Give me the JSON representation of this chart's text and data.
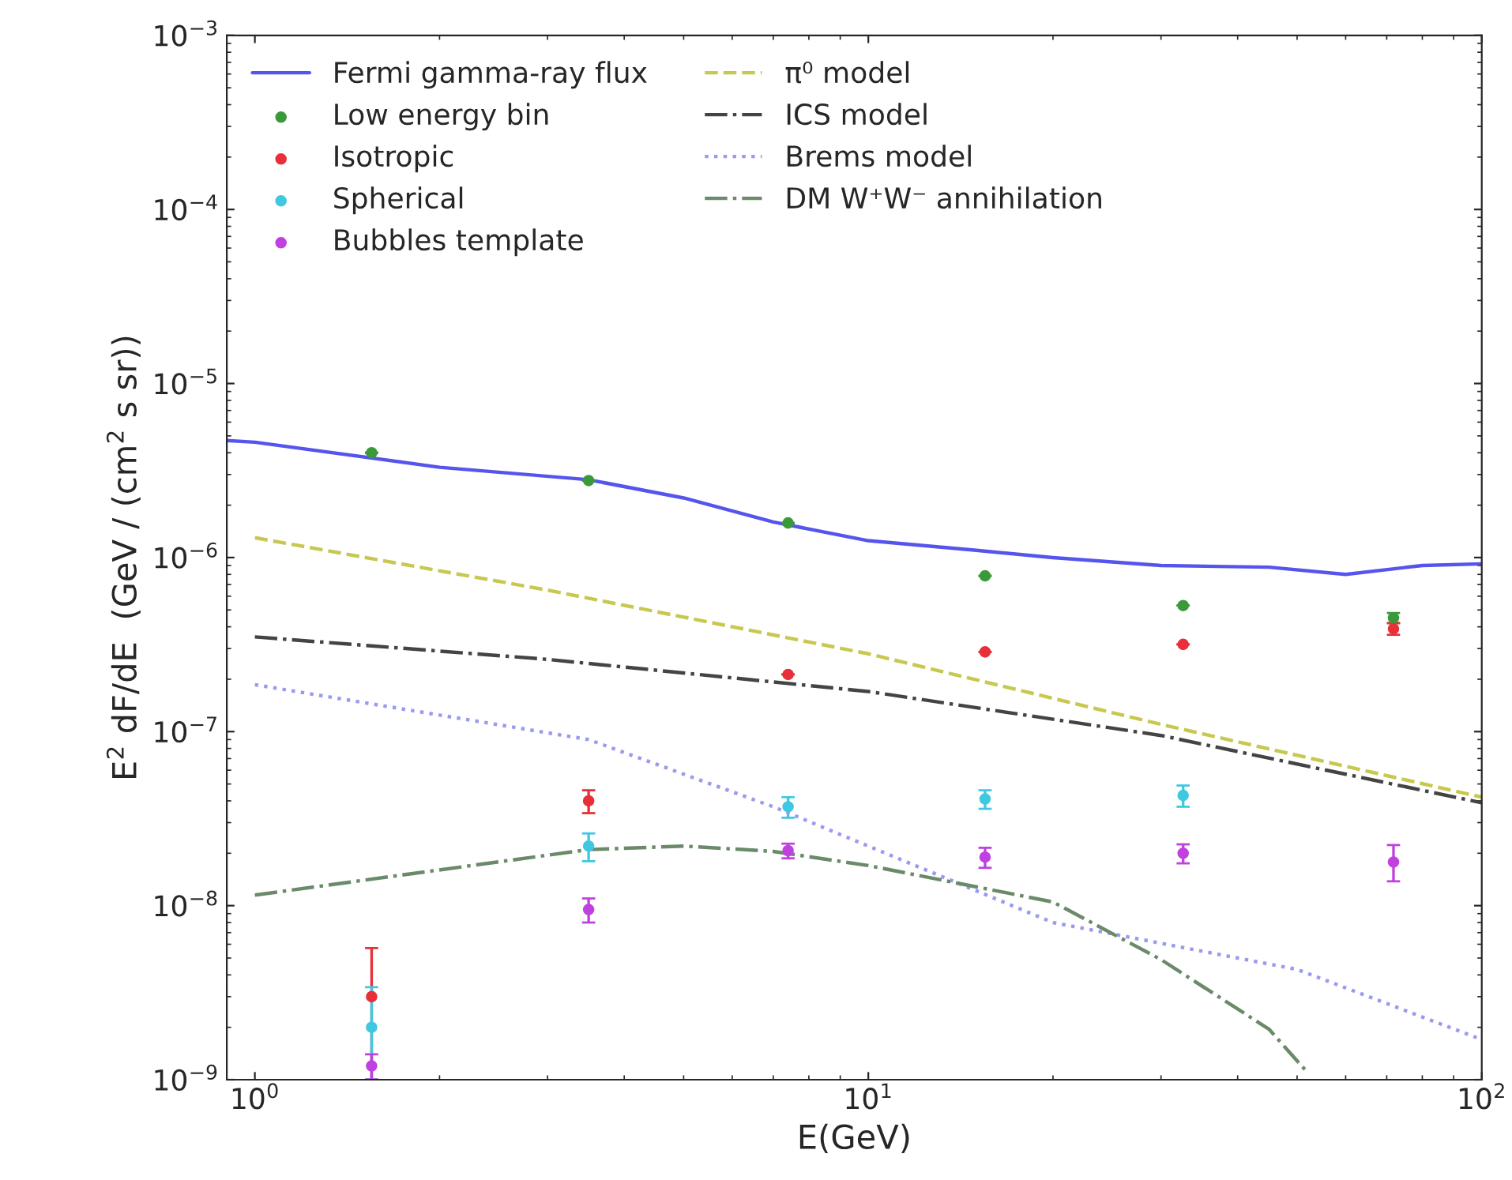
{
  "chart_data": {
    "type": "line",
    "xlabel": "E(GeV)",
    "ylabel": "E$^{2}$ dF/dE  (GeV / (cm$^{2}$ s sr))",
    "log": "xy",
    "grid": false,
    "legend": "top left",
    "xlim": [
      0.9,
      100
    ],
    "ylim": [
      1e-09,
      0.001
    ],
    "xticks": [
      {
        "value": 1,
        "label": "10$^{0}$"
      },
      {
        "value": 10,
        "label": "10$^{1}$"
      },
      {
        "value": 100,
        "label": "10$^{2}$"
      }
    ],
    "yticks": [
      {
        "value": 1e-09,
        "label": "10$^{−9}$"
      },
      {
        "value": 1e-08,
        "label": "10$^{−8}$"
      },
      {
        "value": 1e-07,
        "label": "10$^{−7}$"
      },
      {
        "value": 1e-06,
        "label": "10$^{−6}$"
      },
      {
        "value": 1e-05,
        "label": "10$^{−5}$"
      },
      {
        "value": 0.0001,
        "label": "10$^{−4}$"
      },
      {
        "value": 0.001,
        "label": "10$^{−3}$"
      }
    ],
    "series": [
      {
        "name": "Fermi gamma-ray flux",
        "line_style": "solid",
        "marker": "none",
        "color": "#5555ee",
        "x": [
          0.9,
          1,
          2,
          3.5,
          5,
          7,
          10,
          15,
          20,
          30,
          45,
          60,
          80,
          100
        ],
        "values": [
          4.7e-06,
          4.6e-06,
          3.3e-06,
          2.8e-06,
          2.2e-06,
          1.6e-06,
          1.25e-06,
          1.1e-06,
          1e-06,
          9e-07,
          8.8e-07,
          8e-07,
          9e-07,
          9.2e-07
        ]
      },
      {
        "name": "Low energy bin",
        "type": "scatter",
        "marker": "circle",
        "color": "#3a9a3a",
        "x": [
          1.55,
          3.5,
          7.4,
          15.5,
          32.6,
          71.8
        ],
        "values": [
          4e-06,
          2.77e-06,
          1.58e-06,
          7.85e-07,
          5.3e-07,
          4.5e-07
        ],
        "errors": [
          null,
          null,
          null,
          null,
          null,
          3e-08
        ]
      },
      {
        "name": "Isotropic",
        "type": "scatter",
        "marker": "circle",
        "color": "#e8303a",
        "x": [
          1.55,
          3.5,
          7.4,
          15.5,
          32.6,
          71.8
        ],
        "values": [
          3e-09,
          4e-08,
          2.13e-07,
          2.87e-07,
          3.17e-07,
          3.9e-07
        ],
        "errors": [
          [
            1e-09,
            5.7e-09
          ],
          6e-09,
          null,
          null,
          null,
          3e-08
        ]
      },
      {
        "name": "Spherical",
        "type": "scatter",
        "marker": "circle",
        "color": "#40c8e0",
        "x": [
          1.55,
          3.5,
          7.4,
          15.5,
          32.6
        ],
        "values": [
          2e-09,
          2.2e-08,
          3.7e-08,
          4.1e-08,
          4.3e-08
        ],
        "errors": [
          [
            1e-09,
            3.4e-09
          ],
          4e-09,
          5e-09,
          5e-09,
          6e-09
        ]
      },
      {
        "name": "Bubbles template",
        "type": "scatter",
        "marker": "circle",
        "color": "#c040e0",
        "x": [
          1.55,
          3.5,
          7.4,
          15.5,
          32.6,
          71.8
        ],
        "values": [
          1.2e-09,
          9.5e-09,
          2.07e-08,
          1.9e-08,
          2e-08,
          1.78e-08
        ],
        "errors": [
          2e-10,
          1.5e-09,
          2e-09,
          2.5e-09,
          2.5e-09,
          [
            1.38e-08,
            2.23e-08
          ]
        ]
      },
      {
        "name": "π⁰ model",
        "line_style": "dashed",
        "marker": "none",
        "color": "#c8c850",
        "x": [
          1,
          3,
          10,
          30,
          100
        ],
        "values": [
          1.3e-06,
          6.5e-07,
          2.8e-07,
          1.1e-07,
          4.2e-08
        ]
      },
      {
        "name": "ICS model",
        "line_style": "dashdot",
        "marker": "none",
        "color": "#444444",
        "x": [
          1,
          3,
          10,
          30,
          100
        ],
        "values": [
          3.5e-07,
          2.6e-07,
          1.7e-07,
          9.5e-08,
          3.9e-08
        ]
      },
      {
        "name": "Brems model",
        "line_style": "dotted",
        "marker": "none",
        "color": "#9a9aee",
        "x": [
          1,
          3.5,
          7,
          20,
          50,
          100
        ],
        "values": [
          1.86e-07,
          9e-08,
          3.7e-08,
          8e-09,
          4.3e-09,
          1.7e-09
        ]
      },
      {
        "name": "DM W⁺W⁻ annihilation",
        "line_style": "dashdot",
        "marker": "none",
        "color": "#6a8a6a",
        "x": [
          1,
          3.5,
          5,
          7,
          10,
          20,
          30,
          45,
          52
        ],
        "values": [
          1.15e-08,
          2.1e-08,
          2.2e-08,
          2.05e-08,
          1.7e-08,
          1.05e-08,
          4.9e-09,
          1.95e-09,
          1.1e-09
        ]
      }
    ]
  }
}
